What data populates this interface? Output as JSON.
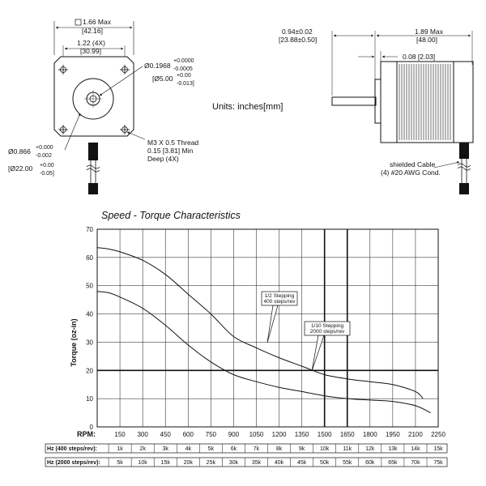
{
  "drawing": {
    "dim_width": "1.66 Max",
    "dim_width_mm": "[42.16]",
    "hole_spacing": "1.22 (4X)",
    "hole_spacing_mm": "[30.99]",
    "shaft_dia": "Ø0.1968",
    "shaft_tol_plus": "+0.0000",
    "shaft_tol_minus": "-0.0005",
    "shaft_dia_mm": "[Ø5.00",
    "shaft_mm_plus": "+0.00",
    "shaft_mm_minus": "-0.013]",
    "pilot_dia": "Ø0.866",
    "pilot_plus": "+0.000",
    "pilot_minus": "-0.002",
    "pilot_dia_mm": "[Ø22.00",
    "pilot_mm_plus": "+0.00",
    "pilot_mm_minus": "-0.05]",
    "thread_line1": "M3 X 0.5 Thread",
    "thread_line2": "0.15 [3.81] Min",
    "thread_line3": "Deep (4X)",
    "units": "Units: inches[mm]",
    "shaft_len": "0.94±0.02",
    "shaft_len_mm": "[23.88±0.50]",
    "body_len": "1.89 Max",
    "body_len_mm": "[48.00]",
    "flange": "0.08 [2.03]",
    "cable_line1": "shielded Cable",
    "cable_line2": "(4) #20 AWG Cond."
  },
  "chart_data": {
    "type": "line",
    "title": "Speed  - Torque Characteristics",
    "xlabel": "RPM:",
    "ylabel": "Torque (oz-in)",
    "xlim": [
      0,
      2250
    ],
    "ylim": [
      0,
      70
    ],
    "x_ticks": [
      150,
      300,
      450,
      600,
      750,
      900,
      1050,
      1200,
      1350,
      1500,
      1650,
      1800,
      1950,
      2100,
      2250
    ],
    "y_ticks": [
      0,
      10,
      20,
      30,
      40,
      50,
      60,
      70
    ],
    "grid": true,
    "emphasized_x": [
      1500,
      1650
    ],
    "emphasized_y": [
      20
    ],
    "series": [
      {
        "name": "1/2 Stepping 400 steps/rev",
        "x": [
          0,
          75,
          150,
          300,
          450,
          600,
          750,
          900,
          1050,
          1200,
          1350,
          1500,
          1650,
          1800,
          1950,
          2100,
          2150
        ],
        "values": [
          63.5,
          63,
          62,
          59,
          54,
          47,
          40,
          32,
          28,
          24.5,
          21.5,
          18.5,
          17,
          16,
          15,
          12.5,
          10
        ]
      },
      {
        "name": "1/10 Stepping 2000 steps/rev",
        "x": [
          0,
          75,
          150,
          300,
          450,
          600,
          750,
          900,
          1050,
          1200,
          1350,
          1500,
          1650,
          1800,
          1950,
          2100,
          2200
        ],
        "values": [
          48,
          47.5,
          46,
          42,
          36,
          29,
          23,
          18.5,
          16,
          14,
          12.5,
          11,
          10,
          9.5,
          9,
          7.5,
          5
        ]
      }
    ],
    "annotations": [
      {
        "series": 0,
        "line1": "1/2 Stepping",
        "line2": "400 steps/rev"
      },
      {
        "series": 1,
        "line1": "1/10 Stepping",
        "line2": "2000 steps/rev"
      }
    ],
    "hz_rows": [
      {
        "label": "Hz (400 steps/rev):",
        "values": [
          "1k",
          "2k",
          "3k",
          "4k",
          "5k",
          "6k",
          "7k",
          "8k",
          "9k",
          "10k",
          "11k",
          "12k",
          "13k",
          "14k",
          "15k"
        ]
      },
      {
        "label": "Hz (2000 steps/rev):",
        "values": [
          "5k",
          "10k",
          "15k",
          "20k",
          "25k",
          "30k",
          "35k",
          "40k",
          "45k",
          "50k",
          "55k",
          "60k",
          "65k",
          "70k",
          "75k"
        ]
      }
    ]
  }
}
